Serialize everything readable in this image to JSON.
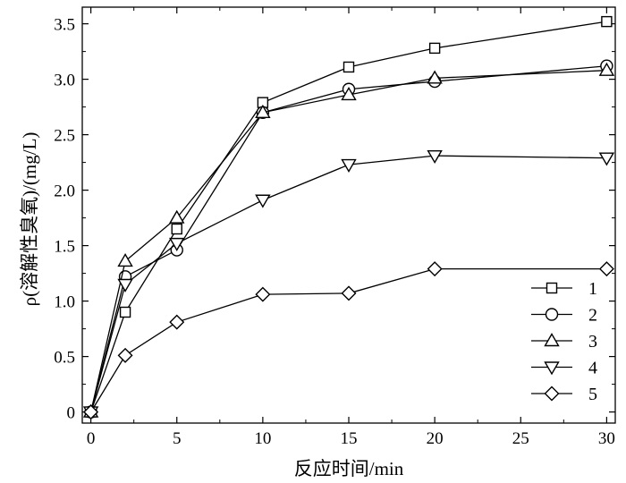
{
  "chart_data": {
    "type": "line",
    "xlabel": "反应时间/min",
    "ylabel": "ρ(溶解性臭氧)/(mg/L)",
    "xlim": [
      -0.5,
      30.5
    ],
    "ylim": [
      -0.1,
      3.65
    ],
    "xticks": [
      "0",
      "5",
      "10",
      "15",
      "20",
      "25",
      "30"
    ],
    "yticks": [
      "0",
      "0.5",
      "1.0",
      "1.5",
      "2.0",
      "2.5",
      "3.0",
      "3.5"
    ],
    "grid": false,
    "legend_position": "bottom-right",
    "x": [
      0,
      2,
      5,
      10,
      15,
      20,
      30
    ],
    "series": [
      {
        "name": "1",
        "marker": "square",
        "values": [
          0,
          0.9,
          1.65,
          2.79,
          3.11,
          3.28,
          3.52
        ]
      },
      {
        "name": "2",
        "marker": "circle",
        "values": [
          0,
          1.22,
          1.46,
          2.7,
          2.91,
          2.98,
          3.12
        ]
      },
      {
        "name": "3",
        "marker": "triangle-up",
        "values": [
          0,
          1.36,
          1.75,
          2.7,
          2.86,
          3.01,
          3.08
        ]
      },
      {
        "name": "4",
        "marker": "triangle-down",
        "values": [
          0,
          1.15,
          1.52,
          1.91,
          2.23,
          2.31,
          2.29
        ]
      },
      {
        "name": "5",
        "marker": "diamond",
        "values": [
          0,
          0.51,
          0.81,
          1.06,
          1.07,
          1.29,
          1.29
        ]
      }
    ]
  }
}
